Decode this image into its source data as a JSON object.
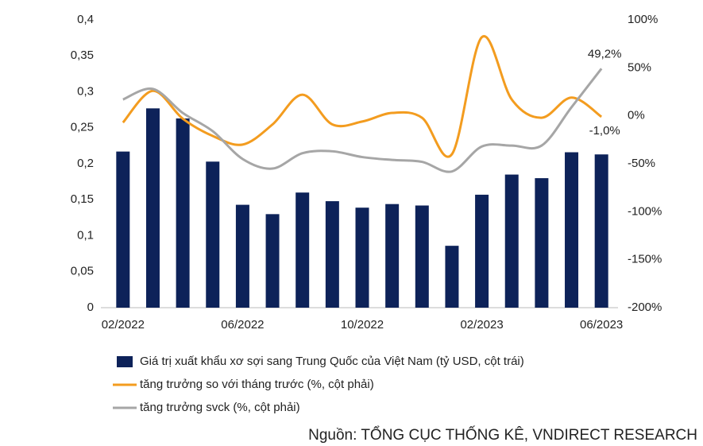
{
  "chart_data": {
    "type": "bar_line",
    "categories": [
      "02/2022",
      null,
      null,
      null,
      "06/2022",
      null,
      null,
      null,
      "10/2022",
      null,
      null,
      null,
      "02/2023",
      null,
      null,
      null,
      "06/2023"
    ],
    "series": [
      {
        "name": "Giá trị xuất khẩu xơ sợi sang Trung Quốc của Việt Nam (tỷ USD, cột trái)",
        "type": "bar",
        "color": "#0d2259",
        "values": [
          0.217,
          0.277,
          0.263,
          0.203,
          0.143,
          0.13,
          0.16,
          0.148,
          0.139,
          0.144,
          0.142,
          0.086,
          0.157,
          0.185,
          0.18,
          0.216,
          0.213
        ]
      },
      {
        "name": "tăng trưởng so với tháng trước (%, cột phải)",
        "type": "line",
        "axis": "y2",
        "color": "#f39c1f",
        "values": [
          -7,
          26,
          -3,
          -21,
          -30,
          -9,
          22,
          -9,
          -6,
          3,
          -2,
          -40,
          82,
          17,
          -2,
          19,
          -1.0
        ],
        "value_labels": [
          null,
          null,
          null,
          null,
          null,
          null,
          null,
          null,
          null,
          null,
          null,
          null,
          null,
          null,
          null,
          null,
          "-1,0%"
        ]
      },
      {
        "name": "tăng trưởng svck (%, cột phải)",
        "type": "line",
        "axis": "y2",
        "color": "#a6a6a6",
        "values": [
          17,
          28,
          3,
          -16,
          -45,
          -55,
          -39,
          -37,
          -43,
          -46,
          -48,
          -58,
          -32,
          -31,
          -31,
          9,
          49.2
        ],
        "value_labels": [
          null,
          null,
          null,
          null,
          null,
          null,
          null,
          null,
          null,
          null,
          null,
          null,
          null,
          null,
          null,
          null,
          "49,2%"
        ]
      }
    ],
    "ylim": [
      0,
      0.4
    ],
    "yticks": [
      0,
      {
        "value": 0.05,
        "label": "0,05"
      },
      {
        "value": 0.1,
        "label": "0,1"
      },
      {
        "value": 0.15,
        "label": "0,15"
      },
      {
        "value": 0.2,
        "label": "0,2"
      },
      {
        "value": 0.25,
        "label": "0,25"
      },
      {
        "value": 0.3,
        "label": "0,3"
      },
      {
        "value": 0.35,
        "label": "0,35"
      },
      {
        "value": 0.4,
        "label": "0,4"
      }
    ],
    "y2lim": [
      -200,
      100
    ],
    "y2ticks": [
      {
        "value": -200,
        "label": "-200%"
      },
      {
        "value": -150,
        "label": "-150%"
      },
      {
        "value": -100,
        "label": "-100%"
      },
      {
        "value": -50,
        "label": "-50%"
      },
      {
        "value": 0,
        "label": "0%"
      },
      {
        "value": 50,
        "label": "50%"
      },
      {
        "value": 100,
        "label": "100%"
      }
    ],
    "source": "Nguồn: TỔNG CỤC THỐNG KÊ, VNDIRECT RESEARCH"
  }
}
